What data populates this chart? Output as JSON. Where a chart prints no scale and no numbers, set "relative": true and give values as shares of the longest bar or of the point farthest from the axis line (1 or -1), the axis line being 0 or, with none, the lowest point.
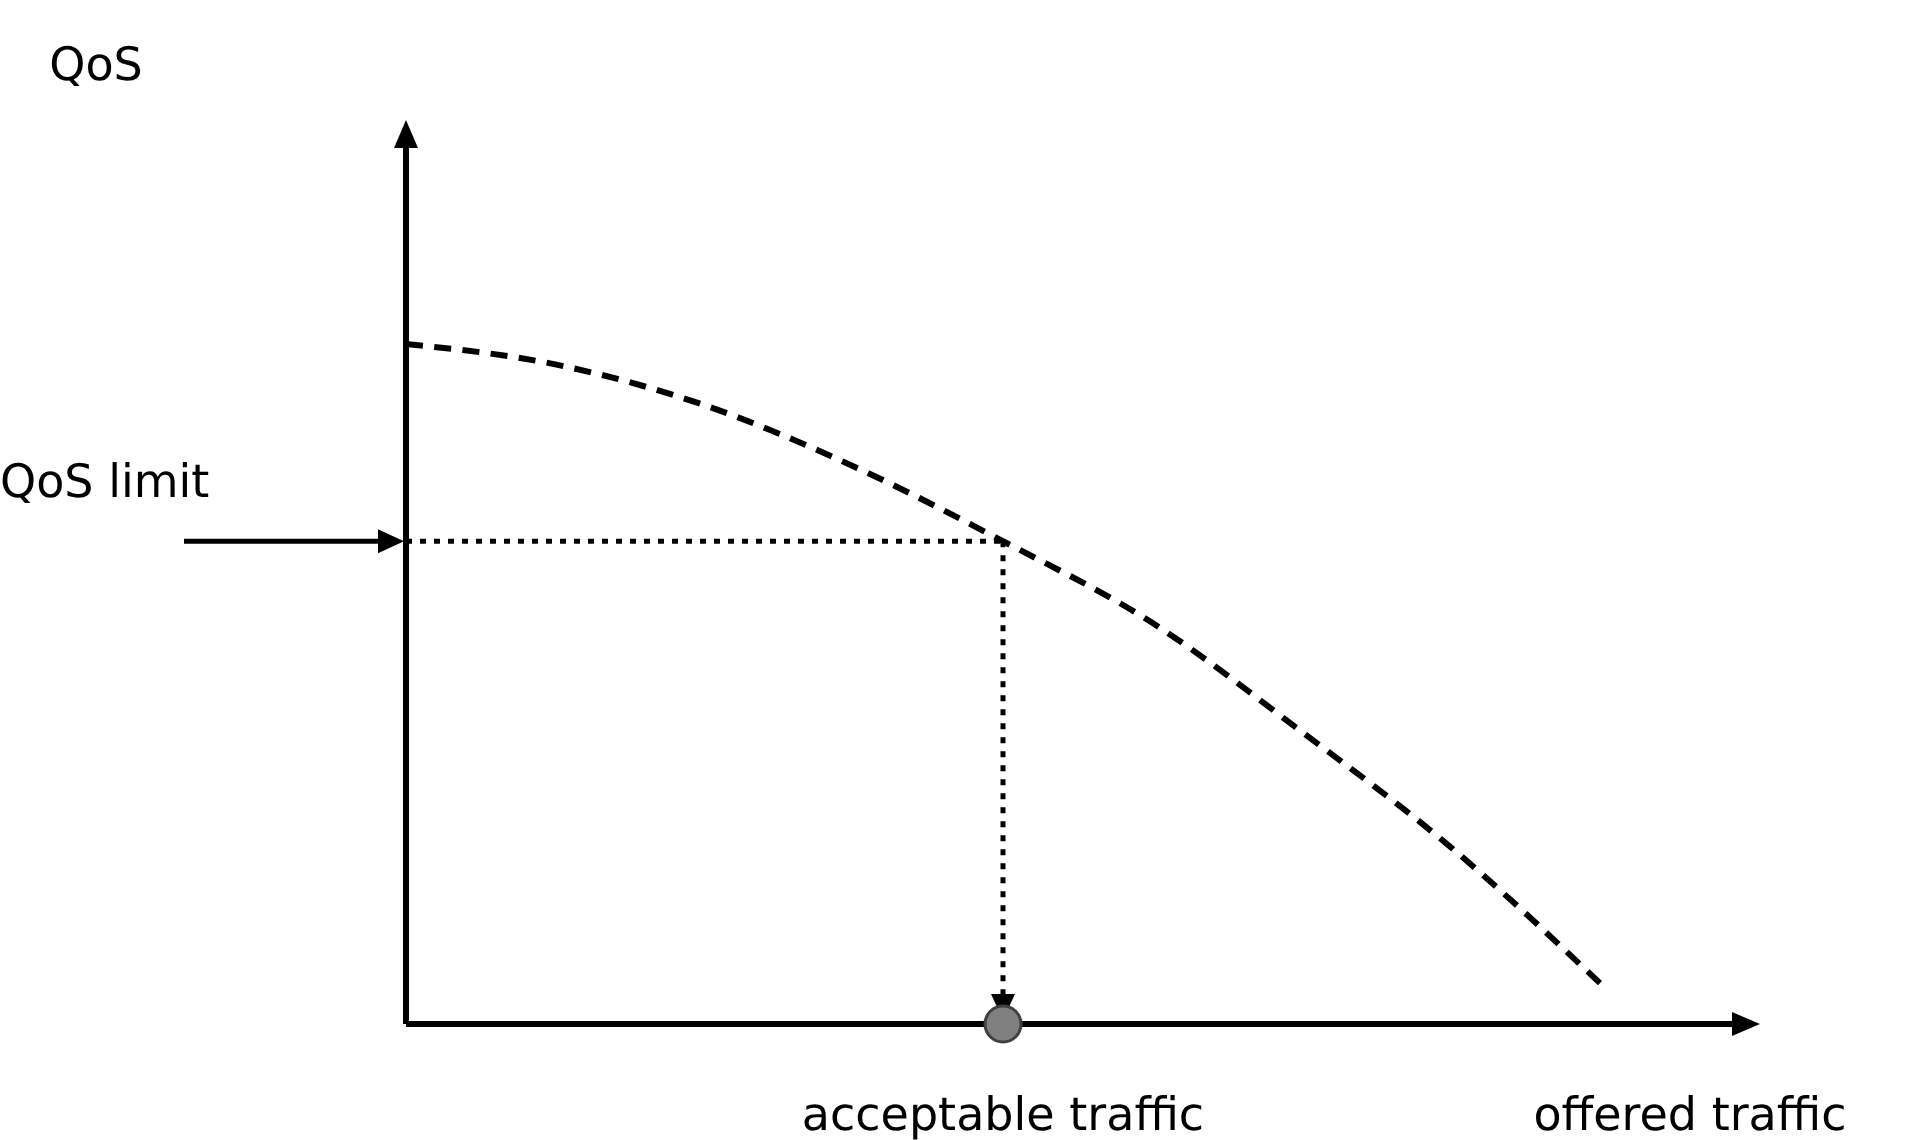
{
  "chart_data": {
    "type": "line",
    "relative": true,
    "xlabel": "offered traffic",
    "categories": [
      null,
      null,
      null,
      null,
      null,
      null,
      null,
      null,
      null
    ],
    "series": [
      {
        "color": "#000000",
        "values": [
          1,
          0.97,
          0.91,
          0.82,
          0.71,
          0.59,
          0.43,
          0.26,
          0.06
        ]
      }
    ],
    "line_style": "dashed",
    "marker": "none",
    "ref_lines": [
      {
        "axis": "y",
        "value": 0.71,
        "label": "QoS limit",
        "line_style": "dotted",
        "color": "#000000"
      }
    ],
    "annotations": [
      "QoS",
      "acceptable traffic"
    ]
  }
}
